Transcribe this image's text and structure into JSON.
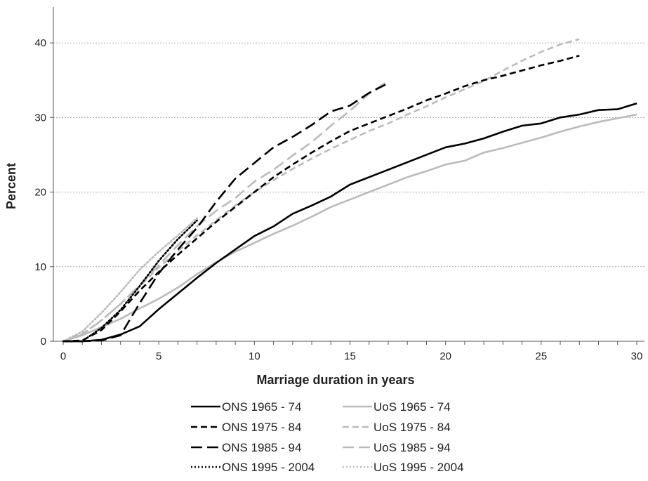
{
  "chart_data": {
    "type": "line",
    "title": "",
    "xlabel": "Marriage duration in years",
    "ylabel": "Percent",
    "xlim": [
      0,
      30
    ],
    "ylim": [
      0,
      45
    ],
    "x_ticks": [
      0,
      5,
      10,
      15,
      20,
      25,
      30
    ],
    "y_ticks": [
      0,
      10,
      20,
      30,
      40
    ],
    "grid": "horizontal",
    "legend_position": "bottom",
    "series": [
      {
        "name": "ONS 1965 - 74",
        "color": "#000000",
        "style": "solid",
        "x": [
          0,
          1,
          2,
          3,
          4,
          5,
          6,
          7,
          8,
          9,
          10,
          11,
          12,
          13,
          14,
          15,
          16,
          17,
          18,
          19,
          20,
          21,
          22,
          23,
          24,
          25,
          26,
          27,
          28,
          29,
          30
        ],
        "y": [
          0,
          0,
          0.2,
          0.9,
          2,
          4.3,
          6.4,
          8.5,
          10.5,
          12.3,
          14.1,
          15.4,
          17.1,
          18.2,
          19.4,
          21,
          22,
          23,
          24,
          25,
          26,
          26.5,
          27.2,
          28.1,
          28.9,
          29.2,
          30,
          30.4,
          31,
          31.1,
          31.9
        ]
      },
      {
        "name": "UoS 1965 - 74",
        "color": "#bbbbbb",
        "style": "solid",
        "x": [
          0,
          1,
          2,
          3,
          4,
          5,
          6,
          7,
          8,
          9,
          10,
          11,
          12,
          13,
          14,
          15,
          16,
          17,
          18,
          19,
          20,
          21,
          22,
          23,
          24,
          25,
          26,
          27,
          28,
          29,
          30
        ],
        "y": [
          0,
          0.8,
          1.9,
          3,
          4.4,
          5.7,
          7.2,
          9,
          10.6,
          12,
          13.2,
          14.4,
          15.5,
          16.7,
          18,
          19,
          20,
          21,
          22,
          22.8,
          23.7,
          24.2,
          25.3,
          25.9,
          26.6,
          27.3,
          28.1,
          28.8,
          29.4,
          29.9,
          30.4
        ]
      },
      {
        "name": "ONS 1975 - 84",
        "color": "#000000",
        "style": "dash",
        "x": [
          0,
          1,
          2,
          3,
          4,
          5,
          6,
          7,
          8,
          9,
          10,
          11,
          12,
          13,
          14,
          15,
          16,
          17,
          18,
          19,
          20,
          21,
          22,
          23,
          24,
          25,
          26,
          27
        ],
        "y": [
          0,
          0.1,
          1.5,
          4,
          6.8,
          9.3,
          11.6,
          13.8,
          16,
          18,
          20,
          22,
          23.7,
          25.3,
          26.8,
          28.2,
          29.2,
          30.2,
          31.2,
          32.3,
          33.2,
          34.2,
          35,
          35.6,
          36.3,
          37,
          37.6,
          38.3
        ]
      },
      {
        "name": "UoS 1975 - 84",
        "color": "#bbbbbb",
        "style": "dash",
        "x": [
          0,
          1,
          2,
          3,
          4,
          5,
          6,
          7,
          8,
          9,
          10,
          11,
          12,
          13,
          14,
          15,
          16,
          17,
          18,
          19,
          20,
          21,
          22,
          23,
          24,
          25,
          26,
          27
        ],
        "y": [
          0,
          1,
          2.8,
          5,
          7.4,
          9.9,
          12.1,
          14.2,
          16.2,
          18.2,
          20,
          21.6,
          23.1,
          24.5,
          25.8,
          27,
          28.2,
          29.2,
          30.4,
          31.5,
          32.7,
          33.8,
          34.9,
          36.3,
          37.6,
          38.8,
          39.8,
          40.5
        ]
      },
      {
        "name": "ONS 1985 - 94",
        "color": "#000000",
        "style": "longdash",
        "x": [
          0,
          1,
          2,
          3,
          4,
          5,
          6,
          7,
          8,
          9,
          10,
          11,
          12,
          13,
          14,
          15,
          16,
          17
        ],
        "y": [
          0,
          0,
          0.1,
          0.8,
          5.1,
          9.1,
          12.3,
          15.2,
          18.7,
          21.8,
          23.9,
          26,
          27.4,
          29,
          30.8,
          31.6,
          33.3,
          34.6
        ]
      },
      {
        "name": "UoS 1985 - 94",
        "color": "#bbbbbb",
        "style": "longdash",
        "x": [
          0,
          1,
          2,
          3,
          4,
          5,
          6,
          7,
          8,
          9,
          10,
          11,
          12,
          13,
          14,
          15,
          16,
          17
        ],
        "y": [
          0,
          0.9,
          2.8,
          5,
          7.5,
          10.2,
          12.9,
          15.4,
          17.5,
          19.2,
          21.4,
          23,
          24.9,
          26.7,
          28.9,
          30.9,
          33.2,
          34.9
        ]
      },
      {
        "name": "ONS 1995 - 2004",
        "color": "#000000",
        "style": "dot",
        "x": [
          0,
          1,
          2,
          3,
          4,
          5,
          6,
          7
        ],
        "y": [
          0,
          0,
          1.8,
          4.2,
          7.4,
          10.8,
          13.7,
          16.2
        ]
      },
      {
        "name": "UoS 1995 - 2004",
        "color": "#bbbbbb",
        "style": "dot",
        "x": [
          0,
          1,
          2,
          3,
          4,
          5,
          6,
          7
        ],
        "y": [
          0,
          1.3,
          3.8,
          6.6,
          9.6,
          12,
          14.2,
          16.5
        ]
      }
    ]
  }
}
